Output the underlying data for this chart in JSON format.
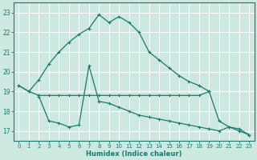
{
  "xlabel": "Humidex (Indice chaleur)",
  "background_color": "#cce8e0",
  "line_color": "#1a7a6e",
  "grid_color": "#ffffff",
  "xlim": [
    -0.5,
    23.5
  ],
  "ylim": [
    16.5,
    23.5
  ],
  "yticks": [
    17,
    18,
    19,
    20,
    21,
    22,
    23
  ],
  "xticks": [
    0,
    1,
    2,
    3,
    4,
    5,
    6,
    7,
    8,
    9,
    10,
    11,
    12,
    13,
    14,
    15,
    16,
    17,
    18,
    19,
    20,
    21,
    22,
    23
  ],
  "line1_x": [
    0,
    1,
    2,
    3,
    4,
    5,
    6,
    7,
    8,
    9,
    10,
    11,
    12,
    13,
    14,
    15,
    16,
    17,
    18,
    19
  ],
  "line1_y": [
    19.3,
    19.0,
    19.6,
    20.4,
    21.0,
    21.5,
    21.9,
    22.2,
    22.9,
    22.5,
    22.8,
    22.5,
    22.0,
    21.0,
    20.6,
    20.2,
    19.8,
    19.5,
    19.3,
    19.0
  ],
  "line2_x": [
    0,
    1,
    2,
    3,
    4,
    5,
    6,
    7,
    8,
    9,
    10,
    11,
    12,
    13,
    14,
    15,
    16,
    17,
    18,
    19,
    20,
    21,
    22,
    23
  ],
  "line2_y": [
    19.3,
    19.0,
    18.8,
    18.8,
    18.8,
    18.8,
    18.8,
    18.8,
    18.8,
    18.8,
    18.8,
    18.8,
    18.8,
    18.8,
    18.8,
    18.8,
    18.8,
    18.8,
    18.8,
    19.0,
    17.5,
    17.2,
    17.1,
    16.8
  ],
  "line3_x": [
    2,
    3,
    4,
    5,
    6,
    7,
    8,
    9,
    10,
    11,
    12,
    13,
    14,
    15,
    16,
    17,
    18,
    19,
    20,
    21,
    22,
    23
  ],
  "line3_y": [
    18.75,
    17.5,
    17.4,
    17.2,
    17.3,
    20.3,
    18.5,
    18.4,
    18.2,
    18.0,
    17.8,
    17.7,
    17.6,
    17.5,
    17.4,
    17.3,
    17.2,
    17.1,
    17.0,
    17.2,
    17.0,
    16.8
  ]
}
